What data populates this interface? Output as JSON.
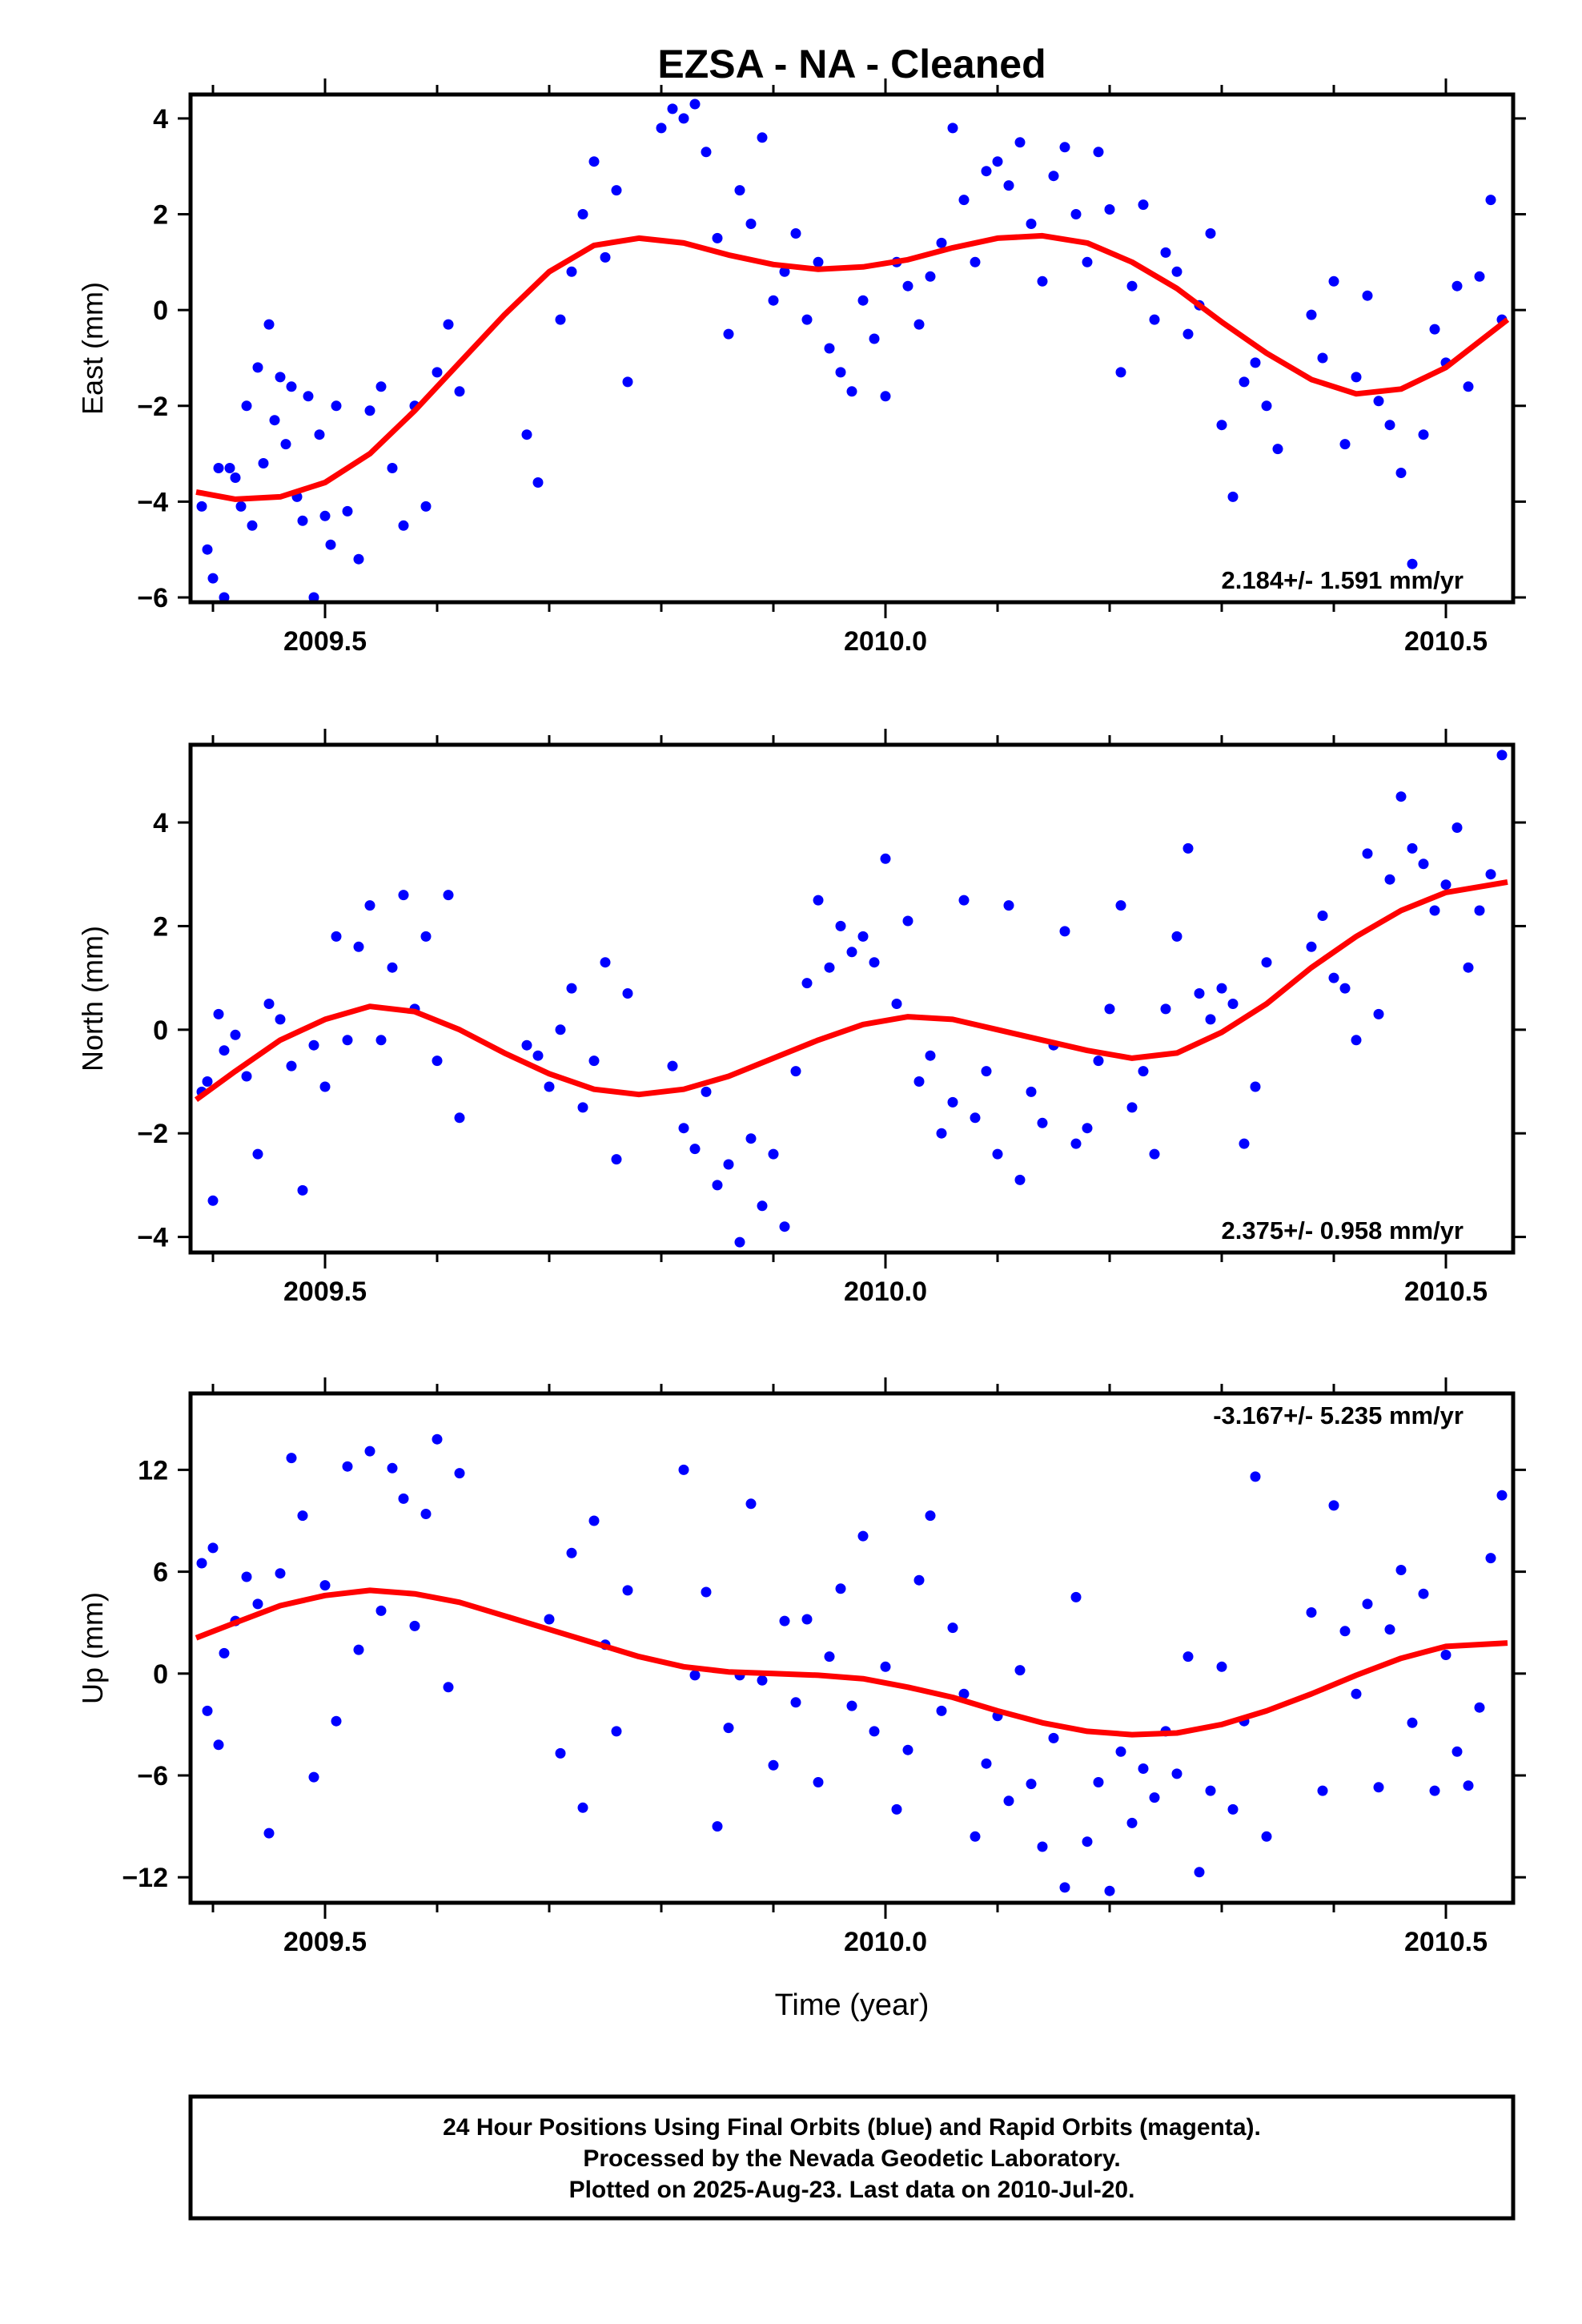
{
  "title": "EZSA  - NA - Cleaned",
  "xlabel": "Time (year)",
  "footer": [
    "24 Hour Positions Using Final Orbits (blue) and Rapid Orbits (magenta).",
    "Processed by the Nevada Geodetic Laboratory.",
    "Plotted on 2025-Aug-23. Last data on 2010-Jul-20."
  ],
  "colors": {
    "points": "#0000ff",
    "fit": "#ff0000",
    "frame": "#000000"
  },
  "chart_data": [
    {
      "type": "scatter",
      "ylabel": "East (mm)",
      "rate_label": "2.184+/- 1.591 mm/yr",
      "xlim": [
        2009.38,
        2010.56
      ],
      "ylim": [
        -6.1,
        4.5
      ],
      "xticks": [
        2009.5,
        2010.0,
        2010.5
      ],
      "xtick_labels": [
        "2009.5",
        "2010.0",
        "2010.5"
      ],
      "yticks": [
        -6,
        -4,
        -2,
        0,
        2,
        4
      ],
      "ytick_labels": [
        "−6",
        "−4",
        "−2",
        "0",
        "2",
        "4"
      ],
      "fit_x": [
        2009.385,
        2009.42,
        2009.46,
        2009.5,
        2009.54,
        2009.58,
        2009.62,
        2009.66,
        2009.7,
        2009.74,
        2009.78,
        2009.82,
        2009.86,
        2009.9,
        2009.94,
        2009.98,
        2010.02,
        2010.06,
        2010.1,
        2010.14,
        2010.18,
        2010.22,
        2010.26,
        2010.3,
        2010.34,
        2010.38,
        2010.42,
        2010.46,
        2010.5,
        2010.555
      ],
      "fit_y": [
        -3.8,
        -3.95,
        -3.9,
        -3.6,
        -3.0,
        -2.1,
        -1.1,
        -0.1,
        0.8,
        1.35,
        1.5,
        1.4,
        1.15,
        0.95,
        0.85,
        0.9,
        1.05,
        1.3,
        1.5,
        1.55,
        1.4,
        1.0,
        0.45,
        -0.25,
        -0.9,
        -1.45,
        -1.75,
        -1.65,
        -1.2,
        -0.2
      ],
      "points_x": [
        2009.39,
        2009.395,
        2009.4,
        2009.405,
        2009.41,
        2009.415,
        2009.42,
        2009.425,
        2009.43,
        2009.435,
        2009.44,
        2009.445,
        2009.45,
        2009.455,
        2009.46,
        2009.465,
        2009.47,
        2009.475,
        2009.48,
        2009.485,
        2009.49,
        2009.495,
        2009.5,
        2009.505,
        2009.51,
        2009.52,
        2009.53,
        2009.54,
        2009.55,
        2009.56,
        2009.57,
        2009.58,
        2009.59,
        2009.6,
        2009.61,
        2009.62,
        2009.68,
        2009.69,
        2009.71,
        2009.72,
        2009.73,
        2009.74,
        2009.75,
        2009.76,
        2009.77,
        2009.8,
        2009.81,
        2009.82,
        2009.83,
        2009.84,
        2009.85,
        2009.86,
        2009.87,
        2009.88,
        2009.89,
        2009.9,
        2009.91,
        2009.92,
        2009.93,
        2009.94,
        2009.95,
        2009.96,
        2009.97,
        2009.98,
        2009.99,
        2010.0,
        2010.01,
        2010.02,
        2010.03,
        2010.04,
        2010.05,
        2010.06,
        2010.07,
        2010.08,
        2010.09,
        2010.1,
        2010.11,
        2010.12,
        2010.13,
        2010.14,
        2010.15,
        2010.16,
        2010.17,
        2010.18,
        2010.19,
        2010.2,
        2010.21,
        2010.22,
        2010.23,
        2010.24,
        2010.25,
        2010.26,
        2010.27,
        2010.28,
        2010.29,
        2010.3,
        2010.31,
        2010.32,
        2010.33,
        2010.34,
        2010.35,
        2010.38,
        2010.39,
        2010.4,
        2010.41,
        2010.42,
        2010.43,
        2010.44,
        2010.45,
        2010.46,
        2010.47,
        2010.48,
        2010.49,
        2010.5,
        2010.51,
        2010.52,
        2010.53,
        2010.54,
        2010.55
      ],
      "points_y": [
        -4.1,
        -5.0,
        -5.6,
        -3.3,
        -6.0,
        -3.3,
        -3.5,
        -4.1,
        -2.0,
        -4.5,
        -1.2,
        -3.2,
        -0.3,
        -2.3,
        -1.4,
        -2.8,
        -1.6,
        -3.9,
        -4.4,
        -1.8,
        -6.0,
        -2.6,
        -4.3,
        -4.9,
        -2.0,
        -4.2,
        -5.2,
        -2.1,
        -1.6,
        -3.3,
        -4.5,
        -2.0,
        -4.1,
        -1.3,
        -0.3,
        -1.7,
        -2.6,
        -3.6,
        -0.2,
        0.8,
        2.0,
        3.1,
        1.1,
        2.5,
        -1.5,
        3.8,
        4.2,
        4.0,
        4.3,
        3.3,
        1.5,
        -0.5,
        2.5,
        1.8,
        3.6,
        0.2,
        0.8,
        1.6,
        -0.2,
        1.0,
        -0.8,
        -1.3,
        -1.7,
        0.2,
        -0.6,
        -1.8,
        1.0,
        0.5,
        -0.3,
        0.7,
        1.4,
        3.8,
        2.3,
        1.0,
        2.9,
        3.1,
        2.6,
        3.5,
        1.8,
        0.6,
        2.8,
        3.4,
        2.0,
        1.0,
        3.3,
        2.1,
        -1.3,
        0.5,
        2.2,
        -0.2,
        1.2,
        0.8,
        -0.5,
        0.1,
        1.6,
        -2.4,
        -3.9,
        -1.5,
        -1.1,
        -2.0,
        -2.9,
        -0.1,
        -1.0,
        0.6,
        -2.8,
        -1.4,
        0.3,
        -1.9,
        -2.4,
        -3.4,
        -5.3,
        -2.6,
        -0.4,
        -1.1,
        0.5,
        -1.6,
        0.7,
        2.3,
        -0.2
      ]
    },
    {
      "type": "scatter",
      "ylabel": "North (mm)",
      "rate_label": "2.375+/- 0.958 mm/yr",
      "xlim": [
        2009.38,
        2010.56
      ],
      "ylim": [
        -4.3,
        5.5
      ],
      "xticks": [
        2009.5,
        2010.0,
        2010.5
      ],
      "xtick_labels": [
        "2009.5",
        "2010.0",
        "2010.5"
      ],
      "yticks": [
        -4,
        -2,
        0,
        2,
        4
      ],
      "ytick_labels": [
        "−4",
        "−2",
        "0",
        "2",
        "4"
      ],
      "fit_x": [
        2009.385,
        2009.42,
        2009.46,
        2009.5,
        2009.54,
        2009.58,
        2009.62,
        2009.66,
        2009.7,
        2009.74,
        2009.78,
        2009.82,
        2009.86,
        2009.9,
        2009.94,
        2009.98,
        2010.02,
        2010.06,
        2010.1,
        2010.14,
        2010.18,
        2010.22,
        2010.26,
        2010.3,
        2010.34,
        2010.38,
        2010.42,
        2010.46,
        2010.5,
        2010.555
      ],
      "fit_y": [
        -1.35,
        -0.8,
        -0.2,
        0.2,
        0.45,
        0.35,
        0.0,
        -0.45,
        -0.85,
        -1.15,
        -1.25,
        -1.15,
        -0.9,
        -0.55,
        -0.2,
        0.1,
        0.25,
        0.2,
        0.0,
        -0.2,
        -0.4,
        -0.55,
        -0.45,
        -0.05,
        0.5,
        1.2,
        1.8,
        2.3,
        2.65,
        2.85
      ],
      "points_x": [
        2009.39,
        2009.395,
        2009.4,
        2009.405,
        2009.41,
        2009.42,
        2009.43,
        2009.44,
        2009.45,
        2009.46,
        2009.47,
        2009.48,
        2009.49,
        2009.5,
        2009.51,
        2009.52,
        2009.53,
        2009.54,
        2009.55,
        2009.56,
        2009.57,
        2009.58,
        2009.59,
        2009.6,
        2009.61,
        2009.62,
        2009.68,
        2009.69,
        2009.7,
        2009.71,
        2009.72,
        2009.73,
        2009.74,
        2009.75,
        2009.76,
        2009.77,
        2009.81,
        2009.82,
        2009.83,
        2009.84,
        2009.85,
        2009.86,
        2009.87,
        2009.88,
        2009.89,
        2009.9,
        2009.91,
        2009.92,
        2009.93,
        2009.94,
        2009.95,
        2009.96,
        2009.97,
        2009.98,
        2009.99,
        2010.0,
        2010.01,
        2010.02,
        2010.03,
        2010.04,
        2010.05,
        2010.06,
        2010.07,
        2010.08,
        2010.09,
        2010.1,
        2010.11,
        2010.12,
        2010.13,
        2010.14,
        2010.15,
        2010.16,
        2010.17,
        2010.18,
        2010.19,
        2010.2,
        2010.21,
        2010.22,
        2010.23,
        2010.24,
        2010.25,
        2010.26,
        2010.27,
        2010.28,
        2010.29,
        2010.3,
        2010.31,
        2010.32,
        2010.33,
        2010.34,
        2010.38,
        2010.39,
        2010.4,
        2010.41,
        2010.42,
        2010.43,
        2010.44,
        2010.45,
        2010.46,
        2010.47,
        2010.48,
        2010.49,
        2010.5,
        2010.51,
        2010.52,
        2010.53,
        2010.54,
        2010.55
      ],
      "points_y": [
        -1.2,
        -1.0,
        -3.3,
        0.3,
        -0.4,
        -0.1,
        -0.9,
        -2.4,
        0.5,
        0.2,
        -0.7,
        -3.1,
        -0.3,
        -1.1,
        1.8,
        -0.2,
        1.6,
        2.4,
        -0.2,
        1.2,
        2.6,
        0.4,
        1.8,
        -0.6,
        2.6,
        -1.7,
        -0.3,
        -0.5,
        -1.1,
        0.0,
        0.8,
        -1.5,
        -0.6,
        1.3,
        -2.5,
        0.7,
        -0.7,
        -1.9,
        -2.3,
        -1.2,
        -3.0,
        -2.6,
        -4.1,
        -2.1,
        -3.4,
        -2.4,
        -3.8,
        -0.8,
        0.9,
        2.5,
        1.2,
        2.0,
        1.5,
        1.8,
        1.3,
        3.3,
        0.5,
        2.1,
        -1.0,
        -0.5,
        -2.0,
        -1.4,
        2.5,
        -1.7,
        -0.8,
        -2.4,
        2.4,
        -2.9,
        -1.2,
        -1.8,
        -0.3,
        1.9,
        -2.2,
        -1.9,
        -0.6,
        0.4,
        2.4,
        -1.5,
        -0.8,
        -2.4,
        0.4,
        1.8,
        3.5,
        0.7,
        0.2,
        0.8,
        0.5,
        -2.2,
        -1.1,
        1.3,
        1.6,
        2.2,
        1.0,
        0.8,
        -0.2,
        3.4,
        0.3,
        2.9,
        4.5,
        3.5,
        3.2,
        2.3,
        2.8,
        3.9,
        1.2,
        2.3,
        3.0,
        5.3
      ]
    },
    {
      "type": "scatter",
      "ylabel": "Up (mm)",
      "xlabel": "Time (year)",
      "rate_label": "-3.167+/- 5.235 mm/yr",
      "xlim": [
        2009.38,
        2010.56
      ],
      "ylim": [
        -13.5,
        16.5
      ],
      "xticks": [
        2009.5,
        2010.0,
        2010.5
      ],
      "xtick_labels": [
        "2009.5",
        "2010.0",
        "2010.5"
      ],
      "yticks": [
        -12,
        -6,
        0,
        6,
        12
      ],
      "ytick_labels": [
        "−12",
        "−6",
        "0",
        "6",
        "12"
      ],
      "fit_x": [
        2009.385,
        2009.42,
        2009.46,
        2009.5,
        2009.54,
        2009.58,
        2009.62,
        2009.66,
        2009.7,
        2009.74,
        2009.78,
        2009.82,
        2009.86,
        2009.9,
        2009.94,
        2009.98,
        2010.02,
        2010.06,
        2010.1,
        2010.14,
        2010.18,
        2010.22,
        2010.26,
        2010.3,
        2010.34,
        2010.38,
        2010.42,
        2010.46,
        2010.5,
        2010.555
      ],
      "fit_y": [
        2.1,
        3.0,
        4.0,
        4.6,
        4.9,
        4.7,
        4.2,
        3.4,
        2.6,
        1.8,
        1.0,
        0.4,
        0.1,
        0.0,
        -0.1,
        -0.3,
        -0.8,
        -1.4,
        -2.2,
        -2.9,
        -3.4,
        -3.6,
        -3.5,
        -3.0,
        -2.2,
        -1.2,
        -0.1,
        0.9,
        1.6,
        1.8
      ],
      "points_x": [
        2009.39,
        2009.395,
        2009.4,
        2009.405,
        2009.41,
        2009.42,
        2009.43,
        2009.44,
        2009.45,
        2009.46,
        2009.47,
        2009.48,
        2009.49,
        2009.5,
        2009.51,
        2009.52,
        2009.53,
        2009.54,
        2009.55,
        2009.56,
        2009.57,
        2009.58,
        2009.59,
        2009.6,
        2009.61,
        2009.62,
        2009.7,
        2009.71,
        2009.72,
        2009.73,
        2009.74,
        2009.75,
        2009.76,
        2009.77,
        2009.82,
        2009.83,
        2009.84,
        2009.85,
        2009.86,
        2009.87,
        2009.88,
        2009.89,
        2009.9,
        2009.91,
        2009.92,
        2009.93,
        2009.94,
        2009.95,
        2009.96,
        2009.97,
        2009.98,
        2009.99,
        2010.0,
        2010.01,
        2010.02,
        2010.03,
        2010.04,
        2010.05,
        2010.06,
        2010.07,
        2010.08,
        2010.09,
        2010.1,
        2010.11,
        2010.12,
        2010.13,
        2010.14,
        2010.15,
        2010.16,
        2010.17,
        2010.18,
        2010.19,
        2010.2,
        2010.21,
        2010.22,
        2010.23,
        2010.24,
        2010.25,
        2010.26,
        2010.27,
        2010.28,
        2010.29,
        2010.3,
        2010.31,
        2010.32,
        2010.33,
        2010.34,
        2010.38,
        2010.39,
        2010.4,
        2010.41,
        2010.42,
        2010.43,
        2010.44,
        2010.45,
        2010.46,
        2010.47,
        2010.48,
        2010.49,
        2010.5,
        2010.51,
        2010.52,
        2010.53,
        2010.54,
        2010.55
      ],
      "points_y": [
        6.5,
        -2.2,
        7.4,
        -4.2,
        1.2,
        3.1,
        5.7,
        4.1,
        -9.4,
        5.9,
        12.7,
        9.3,
        -6.1,
        5.2,
        -2.8,
        12.2,
        1.4,
        13.1,
        3.7,
        12.1,
        10.3,
        2.8,
        9.4,
        13.8,
        -0.8,
        11.8,
        3.2,
        -4.7,
        7.1,
        -7.9,
        9.0,
        1.7,
        -3.4,
        4.9,
        12.0,
        -0.1,
        4.8,
        -9.0,
        -3.2,
        -0.1,
        10.0,
        -0.4,
        -5.4,
        3.1,
        -1.7,
        3.2,
        -6.4,
        1.0,
        5.0,
        -1.9,
        8.1,
        -3.4,
        0.4,
        -8.0,
        -4.5,
        5.5,
        9.3,
        -2.2,
        2.7,
        -1.2,
        -9.6,
        -5.3,
        -2.5,
        -7.5,
        0.2,
        -6.5,
        -10.2,
        -3.8,
        -12.6,
        4.5,
        -9.9,
        -6.4,
        -12.8,
        -4.6,
        -8.8,
        -5.6,
        -7.3,
        -3.4,
        -5.9,
        1.0,
        -11.7,
        -6.9,
        0.4,
        -8.0,
        -2.8,
        11.6,
        -9.6,
        3.6,
        -6.9,
        9.9,
        2.5,
        -1.2,
        4.1,
        -6.7,
        2.6,
        6.1,
        -2.9,
        4.7,
        -6.9,
        1.1,
        -4.6,
        -6.6,
        -2.0,
        6.8,
        10.5
      ]
    }
  ]
}
